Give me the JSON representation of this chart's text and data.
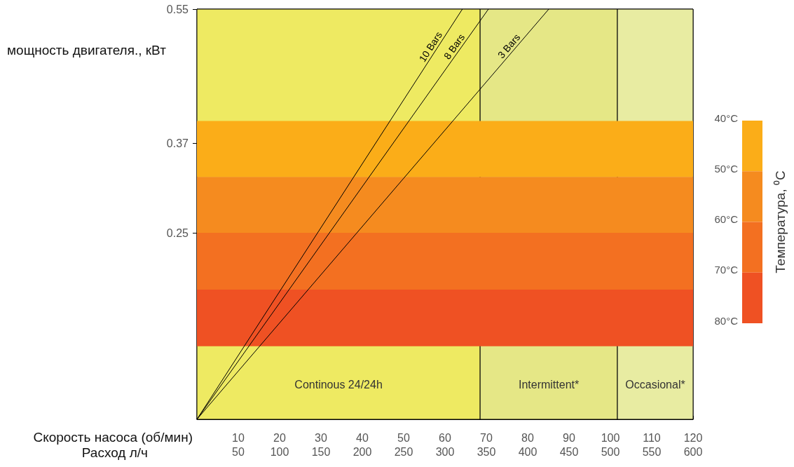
{
  "chart_data": {
    "type": "line",
    "xlabel": "Скорость насоса (об/мин)",
    "x2label": "Расход л/ч",
    "ylabel": "мощность двигателя., кВт",
    "clabel": "Температура, ⁰C",
    "xlim": [
      0,
      120
    ],
    "xticks": [
      10,
      20,
      30,
      40,
      50,
      60,
      70,
      80,
      90,
      100,
      110,
      120
    ],
    "x2lim": [
      0,
      600
    ],
    "x2ticks": [
      50,
      100,
      150,
      200,
      250,
      300,
      350,
      400,
      450,
      500,
      550,
      600
    ],
    "ylim": [
      0,
      0.55
    ],
    "yticks": [
      0.25,
      0.37,
      0.55
    ],
    "clim": [
      40,
      80
    ],
    "cticks": [
      {
        "value": 40,
        "label": "40°C"
      },
      {
        "value": 50,
        "label": "50°C"
      },
      {
        "value": 60,
        "label": "60°C"
      },
      {
        "value": 70,
        "label": "70°C"
      },
      {
        "value": 80,
        "label": "80°C"
      }
    ],
    "grid": false,
    "legend": false,
    "marker": "none",
    "line_style": "solid",
    "series": [
      {
        "name": "10 Bars",
        "color": "#000000",
        "x": [
          0,
          64.2
        ],
        "values": [
          0,
          0.55
        ]
      },
      {
        "name": "8 Bars",
        "color": "#000000",
        "x": [
          0,
          70.5
        ],
        "values": [
          0,
          0.55
        ]
      },
      {
        "name": "3 Bars",
        "color": "#000000",
        "x": [
          0,
          85.1
        ],
        "values": [
          0,
          0.55
        ]
      }
    ],
    "bands": [
      {
        "axis": "x",
        "from": 0,
        "to": 68.5,
        "label": "Continous 24/24h",
        "color": "#eeea62"
      },
      {
        "axis": "x",
        "from": 68.5,
        "to": 101.7,
        "label": "Intermittent*",
        "color": "#e5e786"
      },
      {
        "axis": "x",
        "from": 101.7,
        "to": 120,
        "label": "Occasional*",
        "color": "#e8eca2"
      },
      {
        "axis": "y",
        "from": 0.325,
        "to": 0.4,
        "color": "#fbad18"
      },
      {
        "axis": "y",
        "from": 0.25,
        "to": 0.325,
        "color": "#f58b1f"
      },
      {
        "axis": "y",
        "from": 0.174,
        "to": 0.25,
        "color": "#f37021"
      },
      {
        "axis": "y",
        "from": 0.098,
        "to": 0.174,
        "color": "#ef5123"
      }
    ]
  }
}
